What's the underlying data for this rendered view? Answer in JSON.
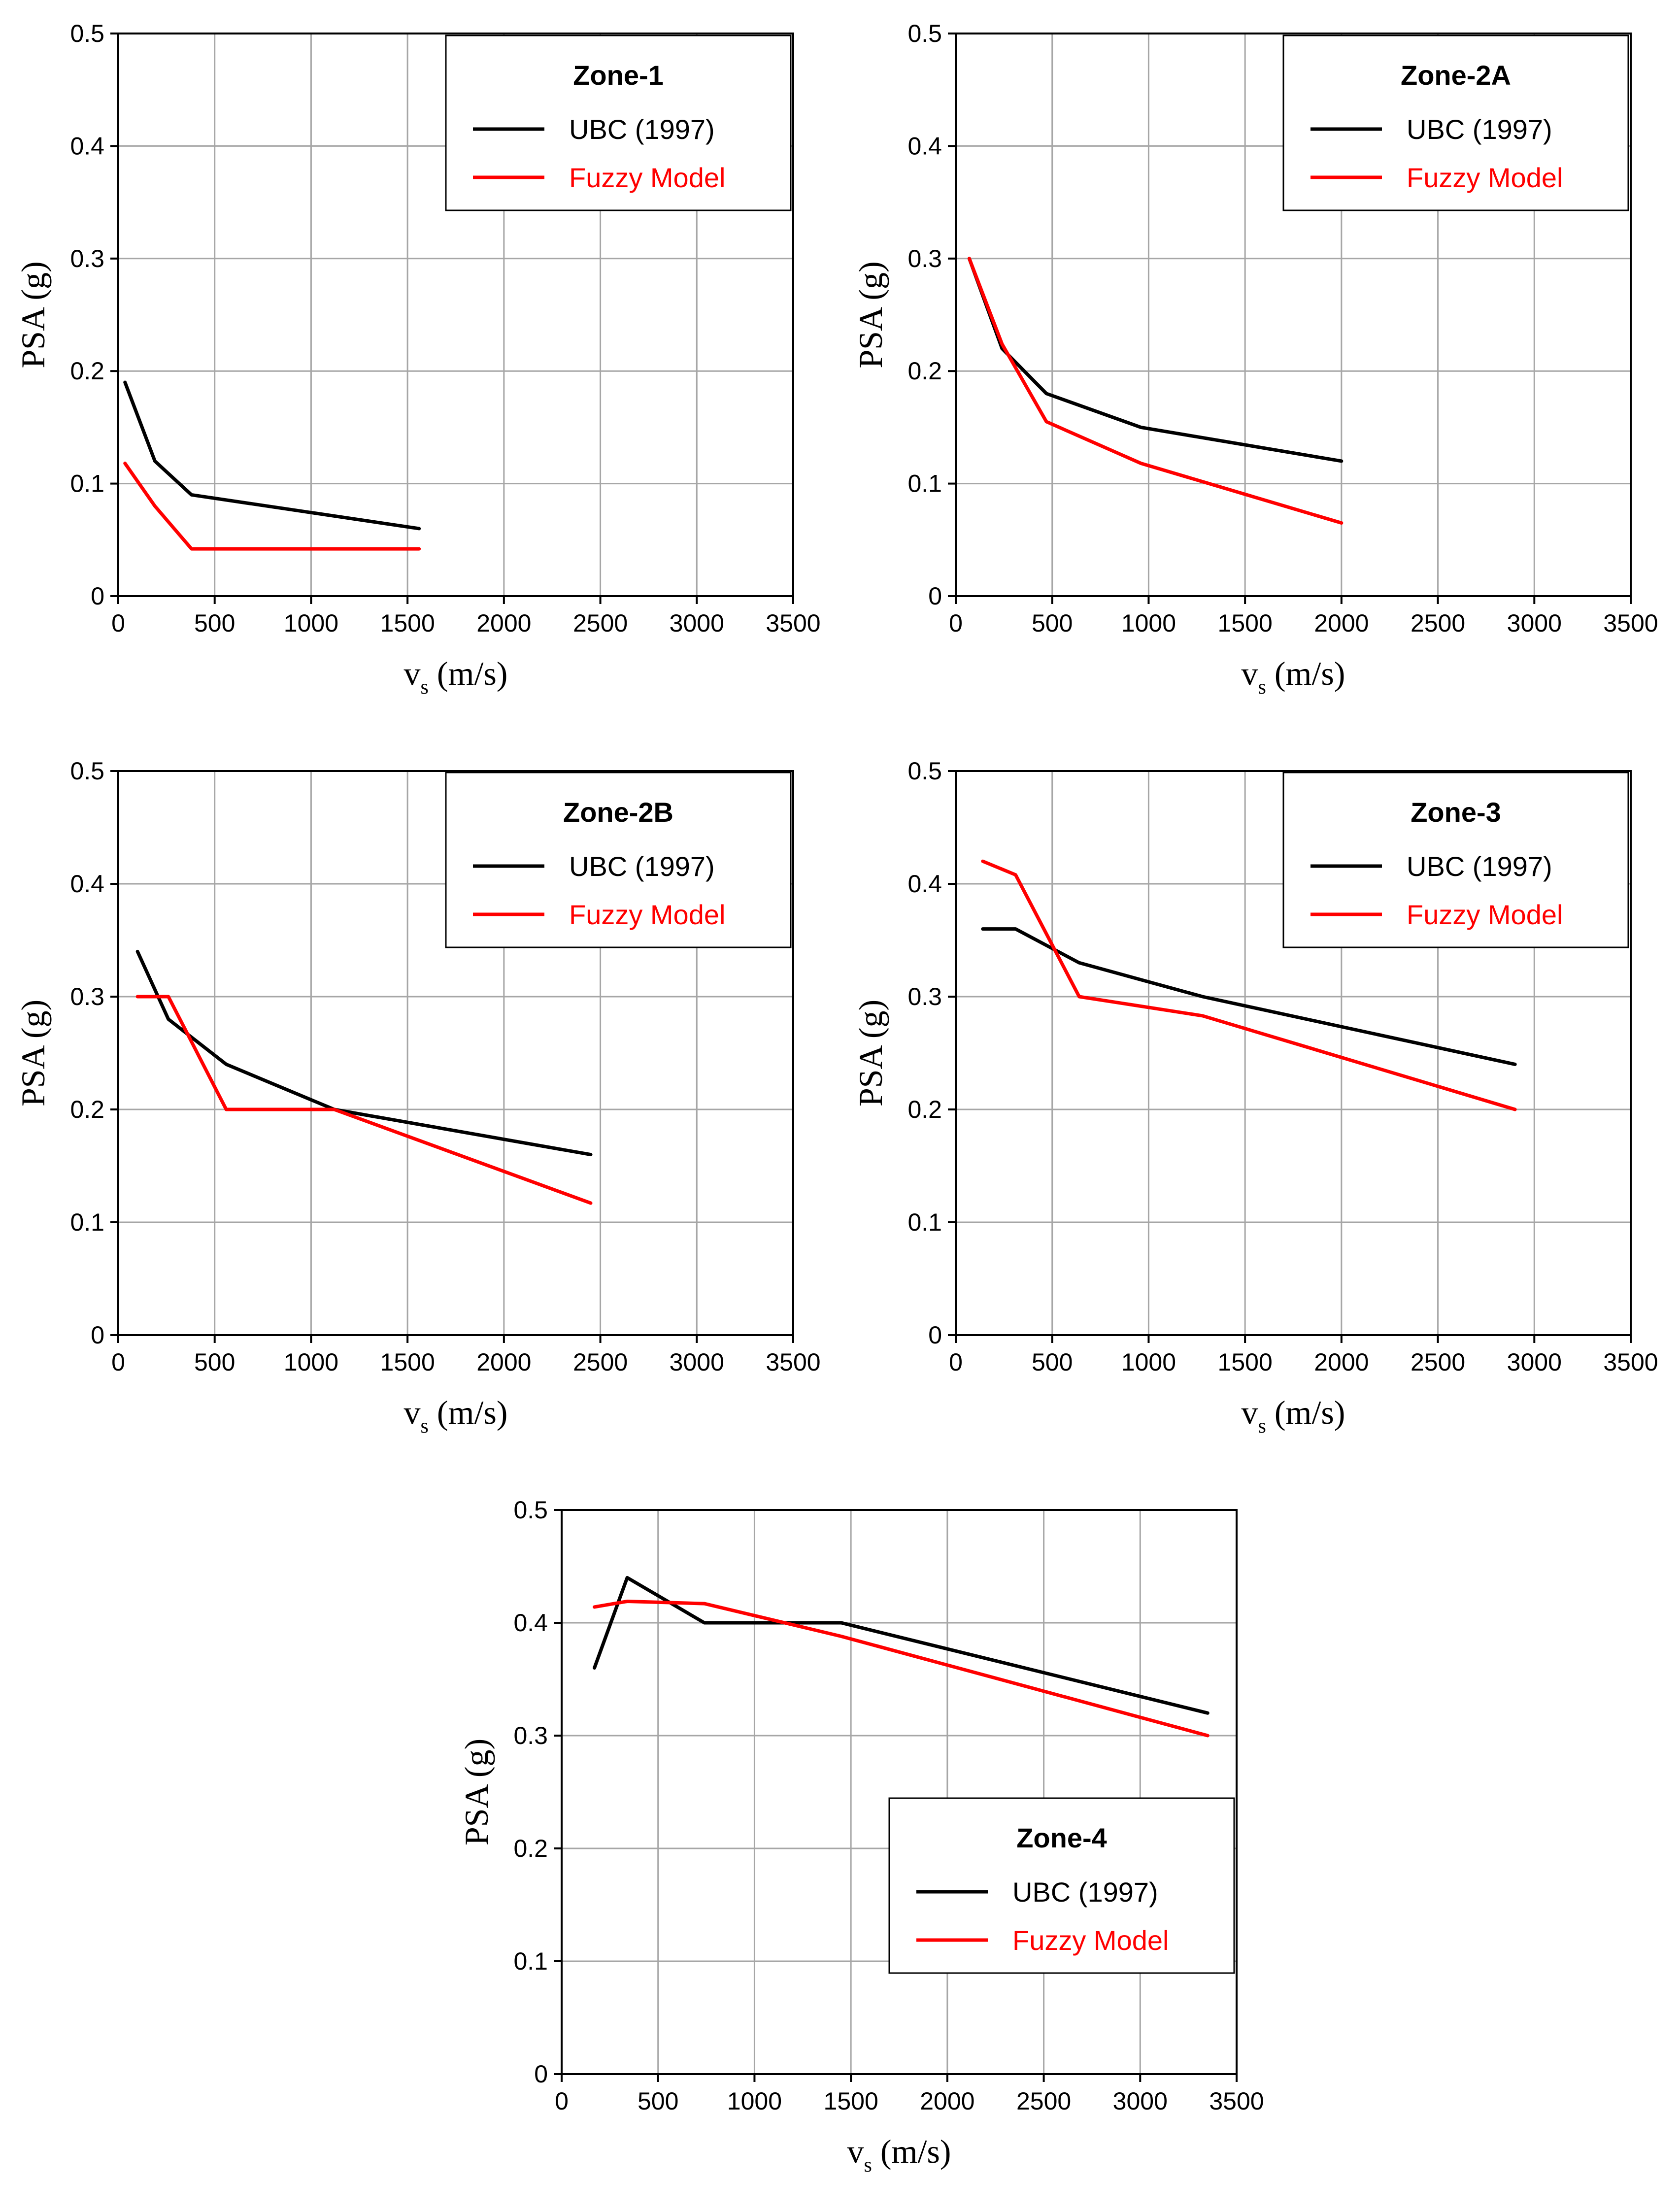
{
  "figure": {
    "background": "#ffffff",
    "series_colors": {
      "UBC (1997)": "#000000",
      "Fuzzy Model": "#ff0000"
    }
  },
  "chart_data": [
    {
      "type": "line",
      "title": "Zone-1",
      "xlabel_main": "v",
      "xlabel_sub": "s",
      "xlabel_units": " (m/s)",
      "ylabel": "PSA (g)",
      "xlim": [
        0,
        3500
      ],
      "ylim": [
        0,
        0.5
      ],
      "xticks": [
        0,
        500,
        1000,
        1500,
        2000,
        2500,
        3000,
        3500
      ],
      "yticks": [
        0,
        0.1,
        0.2,
        0.3,
        0.4,
        0.5
      ],
      "legend_position": "top-right",
      "series": [
        {
          "name": "UBC (1997)",
          "color": "#000000",
          "x": [
            35,
            190,
            380,
            1560
          ],
          "y": [
            0.19,
            0.12,
            0.09,
            0.06
          ]
        },
        {
          "name": "Fuzzy Model",
          "color": "#ff0000",
          "x": [
            35,
            190,
            380,
            1560
          ],
          "y": [
            0.118,
            0.08,
            0.042,
            0.042
          ]
        }
      ]
    },
    {
      "type": "line",
      "title": "Zone-2A",
      "xlabel_main": "v",
      "xlabel_sub": "s",
      "xlabel_units": " (m/s)",
      "ylabel": "PSA (g)",
      "xlim": [
        0,
        3500
      ],
      "ylim": [
        0,
        0.5
      ],
      "xticks": [
        0,
        500,
        1000,
        1500,
        2000,
        2500,
        3000,
        3500
      ],
      "yticks": [
        0,
        0.1,
        0.2,
        0.3,
        0.4,
        0.5
      ],
      "legend_position": "top-right",
      "series": [
        {
          "name": "UBC (1997)",
          "color": "#000000",
          "x": [
            70,
            240,
            470,
            960,
            2000
          ],
          "y": [
            0.3,
            0.22,
            0.18,
            0.15,
            0.12
          ]
        },
        {
          "name": "Fuzzy Model",
          "color": "#ff0000",
          "x": [
            70,
            240,
            470,
            960,
            2000
          ],
          "y": [
            0.3,
            0.224,
            0.155,
            0.118,
            0.065
          ]
        }
      ]
    },
    {
      "type": "line",
      "title": "Zone-2B",
      "xlabel_main": "v",
      "xlabel_sub": "s",
      "xlabel_units": " (m/s)",
      "ylabel": "PSA (g)",
      "xlim": [
        0,
        3500
      ],
      "ylim": [
        0,
        0.5
      ],
      "xticks": [
        0,
        500,
        1000,
        1500,
        2000,
        2500,
        3000,
        3500
      ],
      "yticks": [
        0,
        0.1,
        0.2,
        0.3,
        0.4,
        0.5
      ],
      "legend_position": "top-right",
      "series": [
        {
          "name": "UBC (1997)",
          "color": "#000000",
          "x": [
            100,
            260,
            560,
            1120,
            2450
          ],
          "y": [
            0.34,
            0.28,
            0.24,
            0.2,
            0.16
          ]
        },
        {
          "name": "Fuzzy Model",
          "color": "#ff0000",
          "x": [
            100,
            260,
            560,
            1120,
            2450
          ],
          "y": [
            0.3,
            0.3,
            0.2,
            0.2,
            0.117
          ]
        }
      ]
    },
    {
      "type": "line",
      "title": "Zone-3",
      "xlabel_main": "v",
      "xlabel_sub": "s",
      "xlabel_units": " (m/s)",
      "ylabel": "PSA (g)",
      "xlim": [
        0,
        3500
      ],
      "ylim": [
        0,
        0.5
      ],
      "xticks": [
        0,
        500,
        1000,
        1500,
        2000,
        2500,
        3000,
        3500
      ],
      "yticks": [
        0,
        0.1,
        0.2,
        0.3,
        0.4,
        0.5
      ],
      "legend_position": "top-right",
      "series": [
        {
          "name": "UBC (1997)",
          "color": "#000000",
          "x": [
            140,
            310,
            640,
            1280,
            2900
          ],
          "y": [
            0.36,
            0.36,
            0.33,
            0.3,
            0.24
          ]
        },
        {
          "name": "Fuzzy Model",
          "color": "#ff0000",
          "x": [
            140,
            310,
            640,
            1280,
            2900
          ],
          "y": [
            0.42,
            0.408,
            0.3,
            0.283,
            0.2
          ]
        }
      ]
    },
    {
      "type": "line",
      "title": "Zone-4",
      "xlabel_main": "v",
      "xlabel_sub": "s",
      "xlabel_units": " (m/s)",
      "ylabel": "PSA (g)",
      "xlim": [
        0,
        3500
      ],
      "ylim": [
        0,
        0.5
      ],
      "xticks": [
        0,
        500,
        1000,
        1500,
        2000,
        2500,
        3000,
        3500
      ],
      "yticks": [
        0,
        0.1,
        0.2,
        0.3,
        0.4,
        0.5
      ],
      "legend_position": "center-right",
      "series": [
        {
          "name": "UBC (1997)",
          "color": "#000000",
          "x": [
            170,
            340,
            740,
            1450,
            3350
          ],
          "y": [
            0.36,
            0.44,
            0.4,
            0.4,
            0.32
          ]
        },
        {
          "name": "Fuzzy Model",
          "color": "#ff0000",
          "x": [
            170,
            340,
            740,
            1450,
            3350
          ],
          "y": [
            0.414,
            0.419,
            0.417,
            0.388,
            0.3
          ]
        }
      ]
    }
  ]
}
